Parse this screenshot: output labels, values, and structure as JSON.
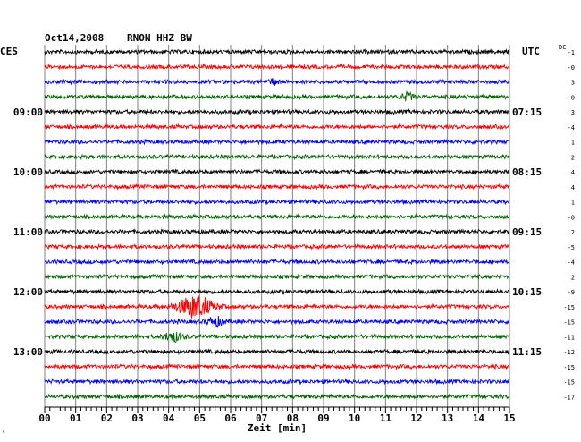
{
  "header": {
    "date": "Oct14,2008",
    "station": "RNON HHZ BW",
    "left_tz": "CES",
    "right_tz": "UTC",
    "dc_label": "DC"
  },
  "chart_data": {
    "type": "line",
    "title": "Oct14,2008   RNON HHZ BW",
    "xlabel": "Zeit [min]",
    "x_ticks": [
      "00",
      "01",
      "02",
      "03",
      "04",
      "05",
      "06",
      "07",
      "08",
      "09",
      "10",
      "11",
      "12",
      "13",
      "14",
      "15"
    ],
    "xlim": [
      0,
      15
    ],
    "trace_count": 24,
    "trace_minutes": 15,
    "trace_colors": [
      "#000000",
      "#ff0000",
      "#0000ff",
      "#006400"
    ],
    "left_time_labels": [
      {
        "trace": 4,
        "label": "09:00"
      },
      {
        "trace": 8,
        "label": "10:00"
      },
      {
        "trace": 12,
        "label": "11:00"
      },
      {
        "trace": 16,
        "label": "12:00"
      },
      {
        "trace": 20,
        "label": "13:00"
      }
    ],
    "right_time_labels": [
      {
        "trace": 4,
        "label": "07:15"
      },
      {
        "trace": 8,
        "label": "08:15"
      },
      {
        "trace": 12,
        "label": "09:15"
      },
      {
        "trace": 16,
        "label": "10:15"
      },
      {
        "trace": 20,
        "label": "11:15"
      }
    ],
    "dc_offsets": [
      "-1",
      "-0",
      "3",
      "-0",
      "3",
      "-4",
      "1",
      "2",
      "4",
      "4",
      "1",
      "-0",
      "2",
      "-5",
      "-4",
      "2",
      "-9",
      "-15",
      "-15",
      "-11",
      "-12",
      "-15",
      "-15",
      "-17"
    ],
    "events": [
      {
        "trace": 17,
        "center_min": 4.85,
        "width_min": 0.55,
        "amplitude": 12
      },
      {
        "trace": 18,
        "center_min": 5.5,
        "width_min": 0.25,
        "amplitude": 5
      },
      {
        "trace": 19,
        "center_min": 4.15,
        "width_min": 0.3,
        "amplitude": 5
      },
      {
        "trace": 3,
        "center_min": 11.7,
        "width_min": 0.2,
        "amplitude": 4
      },
      {
        "trace": 2,
        "center_min": 7.4,
        "width_min": 0.15,
        "amplitude": 3
      }
    ]
  }
}
